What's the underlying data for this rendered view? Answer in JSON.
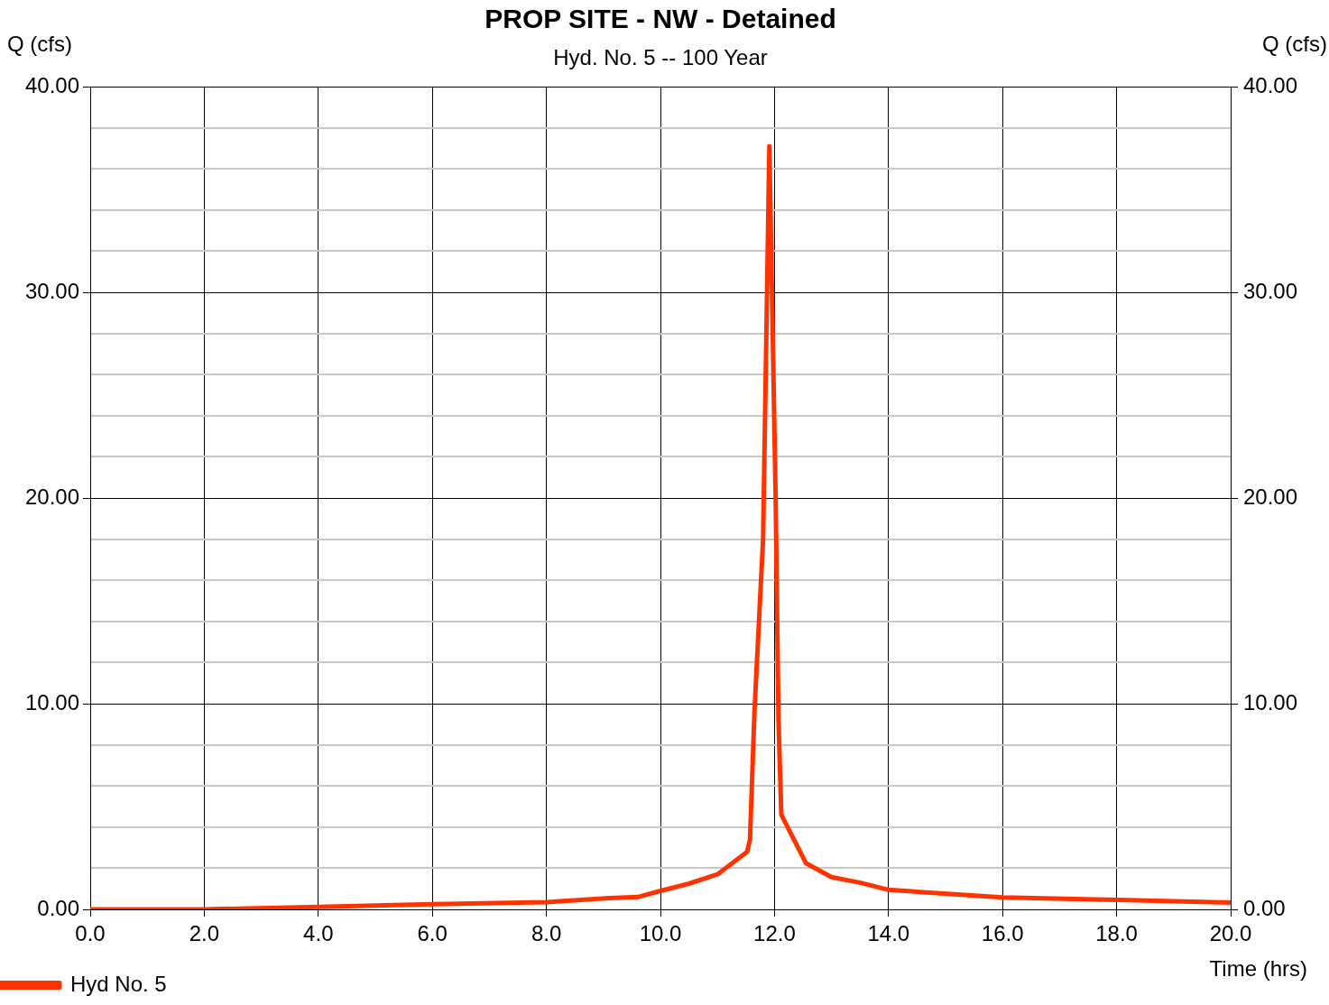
{
  "chart_data": {
    "type": "line",
    "title": "PROP SITE - NW - Detained",
    "subtitle": "Hyd. No. 5 -- 100 Year",
    "xlabel": "Time (hrs)",
    "ylabel": "Q (cfs)",
    "y2label": "Q (cfs)",
    "x": [
      0,
      2.0,
      4.0,
      6.0,
      8.0,
      9.1,
      9.6,
      10.0,
      10.5,
      11.0,
      11.52,
      11.57,
      11.65,
      11.8,
      11.91,
      12.02,
      12.07,
      12.12,
      12.55,
      13.0,
      13.5,
      14.0,
      16.0,
      18.0,
      20.0
    ],
    "series": [
      {
        "name": "Hyd No. 5",
        "color": "#ff3300",
        "values": [
          0,
          0,
          0.12,
          0.25,
          0.35,
          0.55,
          0.6,
          0.9,
          1.25,
          1.7,
          2.8,
          3.4,
          9.7,
          18,
          37.1,
          20,
          9.2,
          4.6,
          2.25,
          1.57,
          1.3,
          0.95,
          0.58,
          0.46,
          0.33
        ]
      }
    ],
    "xlim": [
      0,
      20
    ],
    "xticks": [
      {
        "value": 0,
        "label": "0.0"
      },
      {
        "value": 2,
        "label": "2.0"
      },
      {
        "value": 4,
        "label": "4.0"
      },
      {
        "value": 6,
        "label": "6.0"
      },
      {
        "value": 8,
        "label": "8.0"
      },
      {
        "value": 10,
        "label": "10.0"
      },
      {
        "value": 12,
        "label": "12.0"
      },
      {
        "value": 14,
        "label": "14.0"
      },
      {
        "value": 16,
        "label": "16.0"
      },
      {
        "value": 18,
        "label": "18.0"
      },
      {
        "value": 20,
        "label": "20.0"
      }
    ],
    "ylim": [
      0,
      40
    ],
    "yticks": [
      {
        "value": 0,
        "label": "0.00"
      },
      {
        "value": 2,
        "label": null
      },
      {
        "value": 4,
        "label": null
      },
      {
        "value": 6,
        "label": null
      },
      {
        "value": 8,
        "label": null
      },
      {
        "value": 10,
        "label": "10.00"
      },
      {
        "value": 12,
        "label": null
      },
      {
        "value": 14,
        "label": null
      },
      {
        "value": 16,
        "label": null
      },
      {
        "value": 18,
        "label": null
      },
      {
        "value": 20,
        "label": "20.00"
      },
      {
        "value": 22,
        "label": null
      },
      {
        "value": 24,
        "label": null
      },
      {
        "value": 26,
        "label": null
      },
      {
        "value": 28,
        "label": null
      },
      {
        "value": 30,
        "label": "30.00"
      },
      {
        "value": 32,
        "label": null
      },
      {
        "value": 34,
        "label": null
      },
      {
        "value": 36,
        "label": null
      },
      {
        "value": 38,
        "label": null
      },
      {
        "value": 40,
        "label": "40.00"
      }
    ],
    "y2lim": [
      0,
      40
    ],
    "y2ticks": [
      {
        "value": 0,
        "label": "0.00"
      },
      {
        "value": 10,
        "label": "10.00"
      },
      {
        "value": 20,
        "label": "20.00"
      },
      {
        "value": 30,
        "label": "30.00"
      },
      {
        "value": 40,
        "label": "40.00"
      }
    ],
    "grid": true,
    "legend": "bottom left",
    "marker": "none",
    "line_style": "solid"
  }
}
